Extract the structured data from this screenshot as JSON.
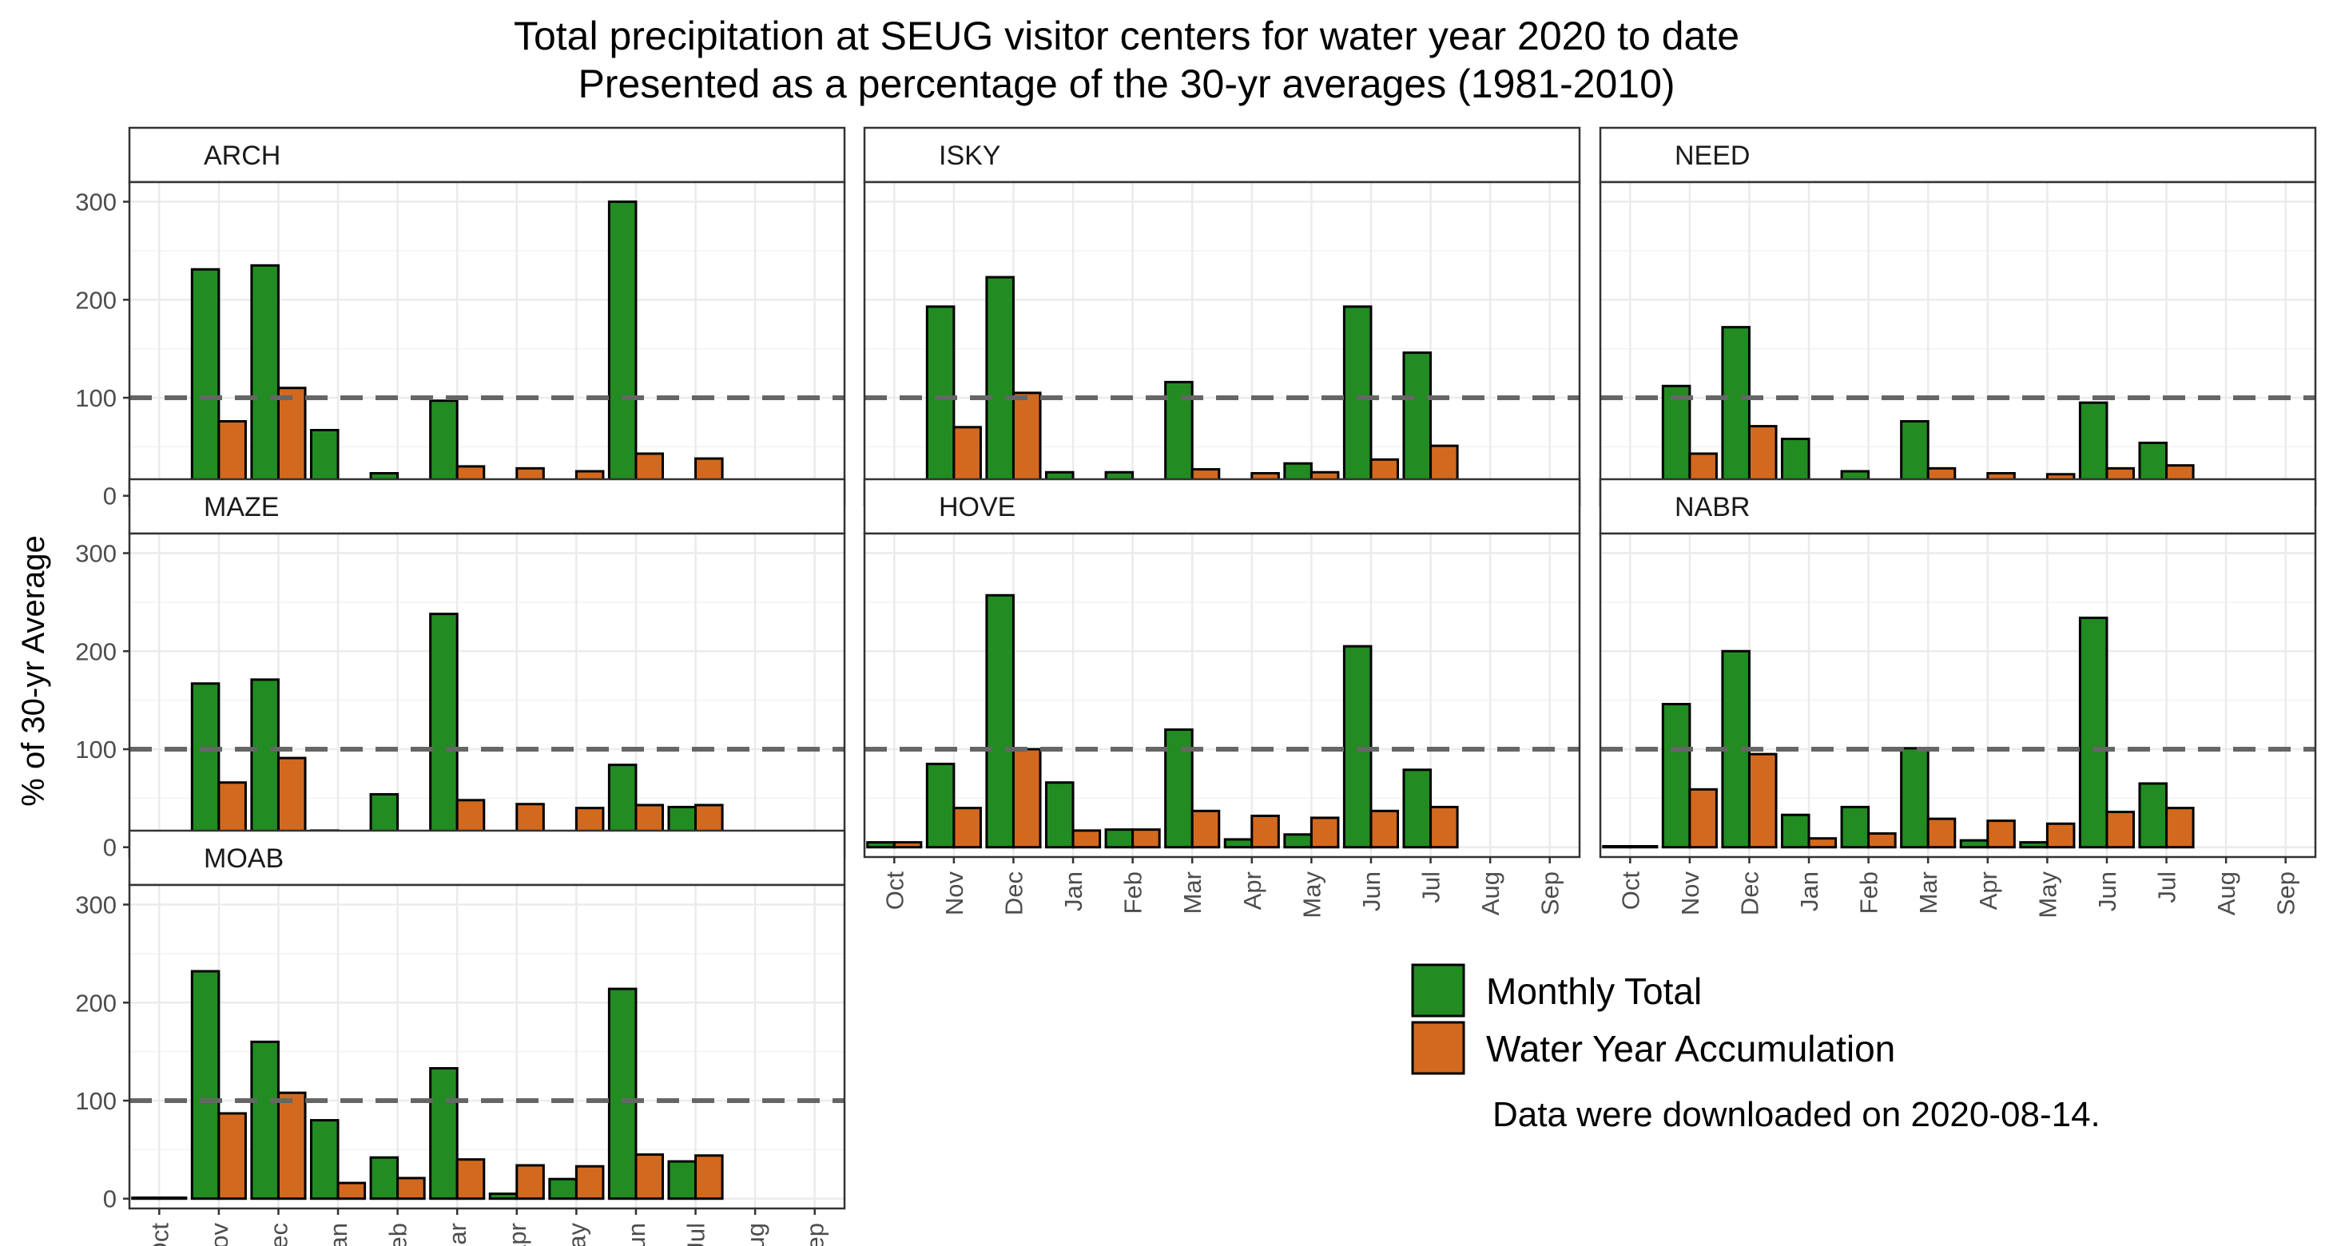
{
  "chart_data": {
    "type": "bar",
    "title": "Total precipitation at SEUG visitor centers for water year 2020 to date",
    "subtitle": "Presented as a percentage of the 30-yr averages (1981-2010)",
    "ylabel": "% of 30-yr Average",
    "xlabel": "",
    "ylim": [
      -10,
      320
    ],
    "yticks": [
      0,
      100,
      200,
      300
    ],
    "reference_line": 100,
    "grid": true,
    "legend_position": "bottom-right",
    "categories": [
      "Oct",
      "Nov",
      "Dec",
      "Jan",
      "Feb",
      "Mar",
      "Apr",
      "May",
      "Jun",
      "Jul",
      "Aug",
      "Sep"
    ],
    "colors": {
      "Monthly Total": "#228B22",
      "Water Year Accumulation": "#D2691E",
      "reference": "#666666"
    },
    "legend": [
      "Monthly Total",
      "Water Year Accumulation"
    ],
    "note": "Data were downloaded on 2020-08-14.",
    "panels": [
      {
        "name": "ARCH",
        "monthly": [
          0,
          231,
          235,
          67,
          23,
          97,
          15,
          8,
          300,
          0,
          null,
          null
        ],
        "accum": [
          0,
          76,
          110,
          13,
          15,
          30,
          28,
          25,
          43,
          38,
          null,
          null
        ]
      },
      {
        "name": "ISKY",
        "monthly": [
          1,
          193,
          223,
          24,
          24,
          116,
          4,
          33,
          193,
          146,
          null,
          null
        ],
        "accum": [
          1,
          70,
          105,
          6,
          7,
          27,
          23,
          24,
          37,
          51,
          null,
          null
        ]
      },
      {
        "name": "NEED",
        "monthly": [
          2,
          112,
          172,
          58,
          25,
          76,
          7,
          9,
          95,
          54,
          null,
          null
        ],
        "accum": [
          2,
          43,
          71,
          11,
          13,
          28,
          23,
          22,
          28,
          31,
          null,
          null
        ]
      },
      {
        "name": "MAZE",
        "monthly": [
          0,
          167,
          171,
          17,
          54,
          238,
          12,
          5,
          84,
          41,
          null,
          null
        ],
        "accum": [
          0,
          66,
          91,
          5,
          11,
          48,
          44,
          40,
          43,
          43,
          null,
          null
        ]
      },
      {
        "name": "HOVE",
        "monthly": [
          5,
          85,
          257,
          66,
          18,
          120,
          8,
          13,
          205,
          79,
          null,
          null
        ],
        "accum": [
          5,
          40,
          100,
          17,
          18,
          37,
          32,
          30,
          37,
          41,
          null,
          null
        ]
      },
      {
        "name": "NABR",
        "monthly": [
          1,
          146,
          200,
          33,
          41,
          101,
          7,
          5,
          234,
          65,
          null,
          null
        ],
        "accum": [
          1,
          59,
          95,
          9,
          14,
          29,
          27,
          24,
          36,
          40,
          null,
          null
        ]
      },
      {
        "name": "MOAB",
        "monthly": [
          1,
          232,
          160,
          80,
          42,
          133,
          5,
          20,
          214,
          38,
          null,
          null
        ],
        "accum": [
          1,
          87,
          108,
          16,
          21,
          40,
          34,
          33,
          45,
          44,
          null,
          null
        ]
      }
    ]
  }
}
